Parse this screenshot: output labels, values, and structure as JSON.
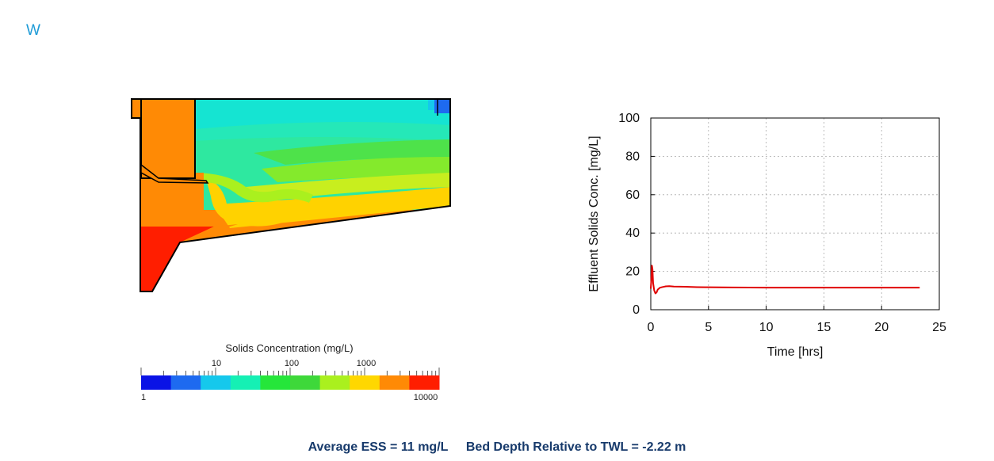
{
  "corner_mark": "W",
  "legend": {
    "title": "Solids Concentration (mg/L)",
    "labels_top": [
      "10",
      "100",
      "1000"
    ],
    "labels_bottom_left": "1",
    "labels_bottom_right": "10000",
    "colors": [
      "#0a13e6",
      "#1e6af0",
      "#15c8ec",
      "#15f0b4",
      "#25e63a",
      "#3ed83a",
      "#aaf01e",
      "#ffd700",
      "#ff8a05",
      "#ff1e00"
    ]
  },
  "chart_data": {
    "type": "line",
    "xlabel": "Time [hrs]",
    "ylabel": "Effluent Solids Conc. [mg/L]",
    "xlim": [
      0,
      25
    ],
    "ylim": [
      0,
      100
    ],
    "xticks": [
      0,
      5,
      10,
      15,
      20,
      25
    ],
    "yticks": [
      0,
      20,
      40,
      60,
      80,
      100
    ],
    "grid": true,
    "series": [
      {
        "color": "#e00000",
        "x": [
          0,
          0.05,
          0.1,
          0.15,
          0.2,
          0.3,
          0.4,
          0.5,
          0.6,
          0.8,
          1.0,
          1.3,
          1.6,
          2.0,
          3.0,
          4.0,
          5.0,
          7.0,
          10.0,
          15.0,
          20.0,
          23.3
        ],
        "y": [
          11,
          16,
          23,
          21,
          14,
          10,
          8.5,
          9,
          10.5,
          11.5,
          11.8,
          12.2,
          12.3,
          12.1,
          12.0,
          11.8,
          11.7,
          11.6,
          11.5,
          11.5,
          11.5,
          11.5
        ]
      }
    ]
  },
  "summary": {
    "ess": "Average ESS = 11 mg/L",
    "bed_depth": "Bed Depth Relative to TWL = -2.22 m"
  }
}
